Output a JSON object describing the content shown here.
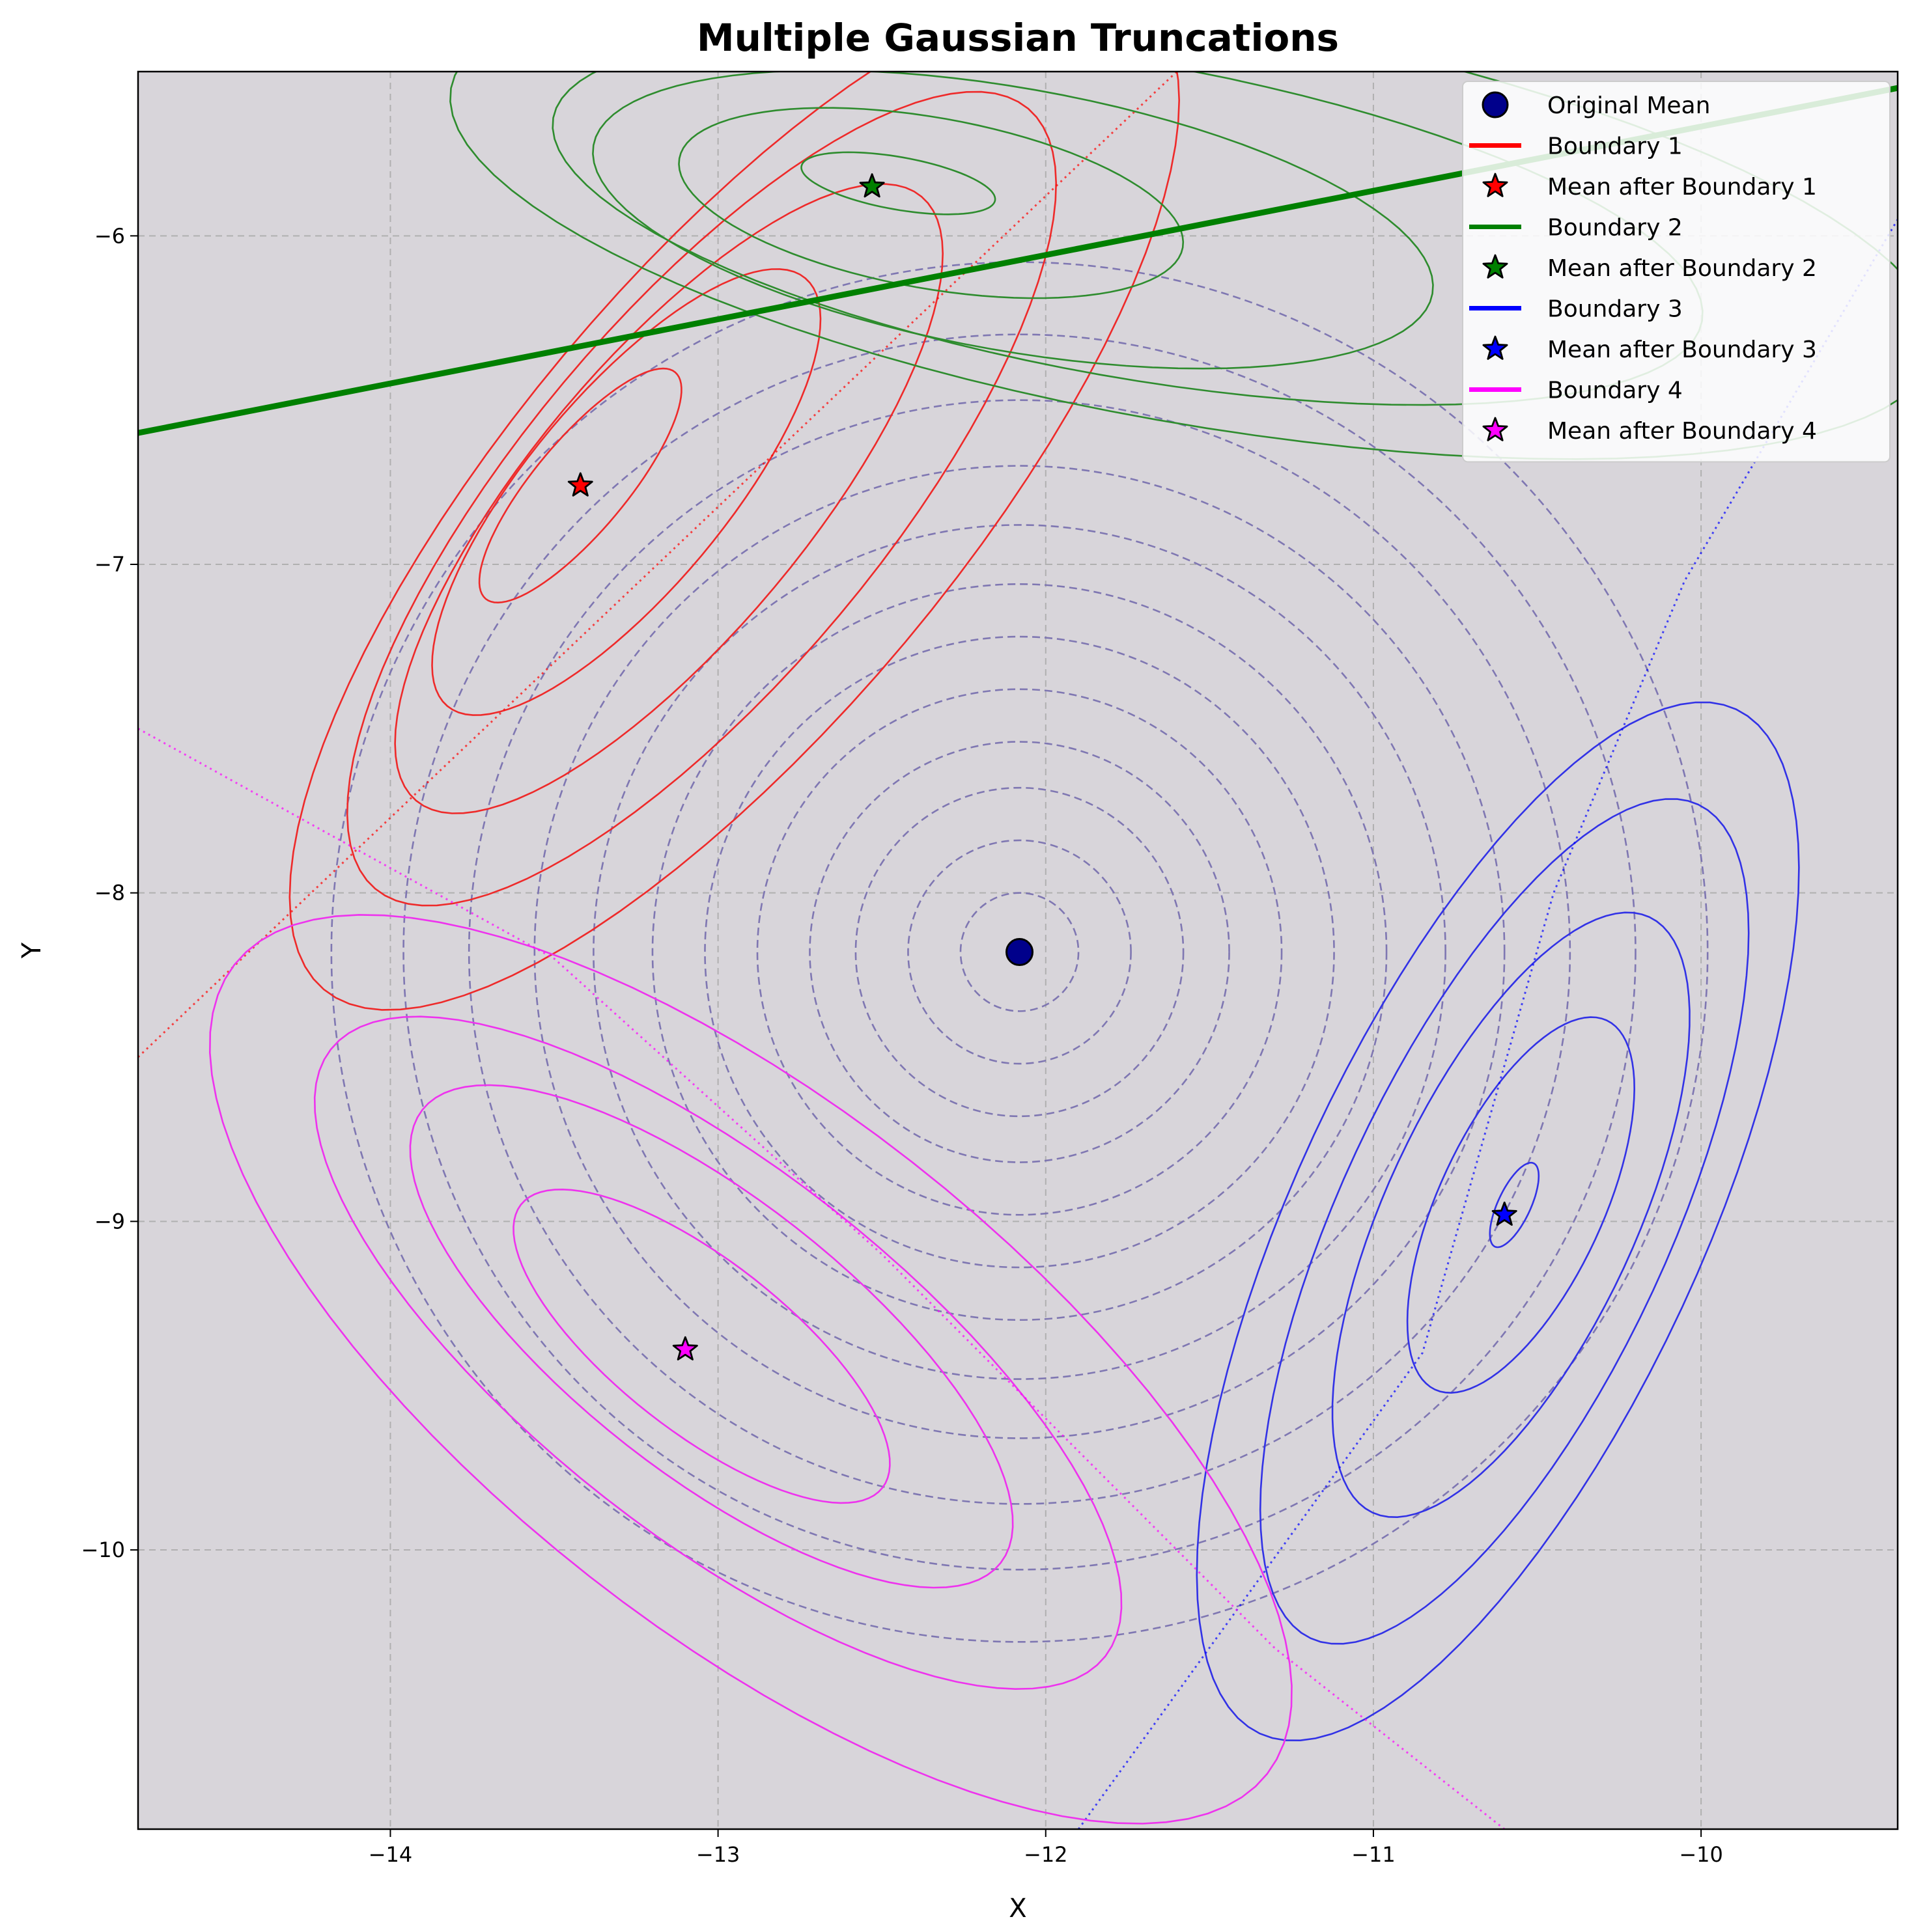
{
  "chart_data": {
    "type": "line",
    "title": "Multiple Gaussian Truncations",
    "xlabel": "X",
    "ylabel": "Y",
    "xlim": [
      -14.77,
      -9.4
    ],
    "ylim": [
      -10.85,
      -5.5
    ],
    "x_ticks": [
      -14,
      -13,
      -12,
      -11,
      -10
    ],
    "y_ticks": [
      -6,
      -7,
      -8,
      -9,
      -10
    ],
    "x_tick_labels": [
      "−14",
      "−13",
      "−12",
      "−11",
      "−10"
    ],
    "y_tick_labels": [
      "−6",
      "−7",
      "−8",
      "−9",
      "−10"
    ],
    "grid": true,
    "background_color": "#d8d5da",
    "legend_position": "top-right",
    "original_mean": {
      "name": "Original Mean",
      "x": -12.08,
      "y": -8.18,
      "color": "#00008b",
      "contour_color": "#7a72b0",
      "contour_radii": [
        0.18,
        0.34,
        0.5,
        0.64,
        0.8,
        0.96,
        1.12,
        1.3,
        1.48,
        1.68,
        1.88,
        2.1
      ]
    },
    "boundaries": [
      {
        "name": "Boundary 1",
        "color": "#ff0000",
        "contour_color": "#ee2a2a",
        "line_points": [
          [
            -14.77,
            -8.5
          ],
          [
            -11.6,
            -5.5
          ]
        ],
        "mean_name": "Mean after Boundary 1",
        "mean": [
          -13.42,
          -6.76
        ],
        "ellipses": [
          {
            "cx": -13.42,
            "cy": -6.76,
            "a": 0.45,
            "b": 0.14,
            "angle": 50
          },
          {
            "cx": -13.28,
            "cy": -6.78,
            "a": 0.85,
            "b": 0.3,
            "angle": 50
          },
          {
            "cx": -13.15,
            "cy": -6.8,
            "a": 1.2,
            "b": 0.42,
            "angle": 50
          },
          {
            "cx": -13.05,
            "cy": -6.8,
            "a": 1.55,
            "b": 0.55,
            "angle": 50
          },
          {
            "cx": -12.95,
            "cy": -6.8,
            "a": 1.95,
            "b": 0.68,
            "angle": 50
          }
        ]
      },
      {
        "name": "Boundary 2",
        "color": "#008000",
        "contour_color": "#2e8c2e",
        "line_points": [
          [
            -14.77,
            -6.6
          ],
          [
            -9.4,
            -5.55
          ]
        ],
        "mean_name": "Mean after Boundary 2",
        "mean": [
          -12.53,
          -5.85
        ],
        "ellipses": [
          {
            "cx": -12.45,
            "cy": -5.84,
            "a": 0.3,
            "b": 0.08,
            "angle": -10
          },
          {
            "cx": -12.35,
            "cy": -5.9,
            "a": 0.78,
            "b": 0.26,
            "angle": -10
          },
          {
            "cx": -12.1,
            "cy": -5.95,
            "a": 1.3,
            "b": 0.4,
            "angle": -10
          },
          {
            "cx": -11.75,
            "cy": -5.95,
            "a": 1.78,
            "b": 0.48,
            "angle": -10
          },
          {
            "cx": -11.55,
            "cy": -5.95,
            "a": 2.3,
            "b": 0.62,
            "angle": -10
          }
        ]
      },
      {
        "name": "Boundary 3",
        "color": "#0000ff",
        "contour_color": "#3232e6",
        "line_points": [
          [
            -11.9,
            -10.85
          ],
          [
            -10.85,
            -9.4
          ],
          [
            -10.45,
            -8.0
          ],
          [
            -10.05,
            -7.05
          ],
          [
            -9.4,
            -5.95
          ]
        ],
        "mean_name": "Mean after Boundary 3",
        "mean": [
          -10.6,
          -8.98
        ],
        "ellipses": [
          {
            "cx": -10.57,
            "cy": -8.95,
            "a": 0.14,
            "b": 0.05,
            "angle": 65
          },
          {
            "cx": -10.55,
            "cy": -8.95,
            "a": 0.62,
            "b": 0.25,
            "angle": 65
          },
          {
            "cx": -10.58,
            "cy": -8.98,
            "a": 1.0,
            "b": 0.38,
            "angle": 65
          },
          {
            "cx": -10.6,
            "cy": -9.0,
            "a": 1.4,
            "b": 0.5,
            "angle": 65
          },
          {
            "cx": -10.62,
            "cy": -9.0,
            "a": 1.72,
            "b": 0.62,
            "angle": 65
          }
        ]
      },
      {
        "name": "Boundary 4",
        "color": "#ff00ff",
        "contour_color": "#ee33ee",
        "line_points": [
          [
            -14.77,
            -7.5
          ],
          [
            -13.5,
            -8.2
          ],
          [
            -12.5,
            -9.1
          ],
          [
            -11.3,
            -10.3
          ],
          [
            -10.6,
            -10.85
          ]
        ],
        "mean_name": "Mean after Boundary 4",
        "mean": [
          -13.1,
          -9.39
        ],
        "ellipses": [
          {
            "cx": -13.05,
            "cy": -9.38,
            "a": 0.7,
            "b": 0.26,
            "angle": -38
          },
          {
            "cx": -13.02,
            "cy": -9.35,
            "a": 1.12,
            "b": 0.42,
            "angle": -38
          },
          {
            "cx": -13.0,
            "cy": -9.4,
            "a": 1.5,
            "b": 0.56,
            "angle": -38
          },
          {
            "cx": -12.9,
            "cy": -9.45,
            "a": 2.0,
            "b": 0.8,
            "angle": -38
          }
        ]
      }
    ]
  }
}
